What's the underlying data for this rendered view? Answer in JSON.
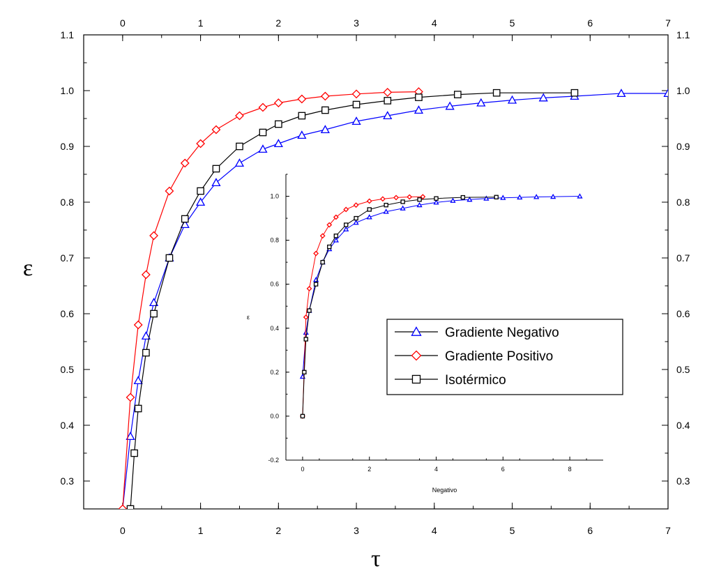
{
  "chart_data": [
    {
      "type": "scatter",
      "xlabel": "τ",
      "ylabel": "ε",
      "xlim": [
        -0.5,
        7
      ],
      "ylim": [
        0.25,
        1.1
      ],
      "x_ticks": [
        0,
        1,
        2,
        3,
        4,
        5,
        6,
        7
      ],
      "y_ticks": [
        0.3,
        0.4,
        0.5,
        0.6,
        0.7,
        0.8,
        0.9,
        1.0,
        1.1
      ],
      "x_tick_labels": [
        "0",
        "1",
        "2",
        "3",
        "4",
        "5",
        "6",
        "7"
      ],
      "y_tick_labels": [
        "0.3",
        "0.4",
        "0.5",
        "0.6",
        "0.7",
        "0.8",
        "0.9",
        "1.0",
        "1.1"
      ],
      "mirror_axes": "top-right",
      "legend_position": "inside-inset",
      "series": [
        {
          "name": "Gradiente Negativo",
          "color": "#0000ff",
          "marker": "triangle-icon",
          "x": [
            0.0,
            0.1,
            0.2,
            0.3,
            0.4,
            0.6,
            0.8,
            1.0,
            1.2,
            1.5,
            1.8,
            2.0,
            2.3,
            2.6,
            3.0,
            3.4,
            3.8,
            4.2,
            4.6,
            5.0,
            5.4,
            5.8,
            6.4,
            7.0
          ],
          "y": [
            0.25,
            0.38,
            0.48,
            0.56,
            0.62,
            0.7,
            0.76,
            0.8,
            0.835,
            0.87,
            0.895,
            0.905,
            0.92,
            0.93,
            0.945,
            0.955,
            0.965,
            0.972,
            0.978,
            0.983,
            0.987,
            0.99,
            0.995,
            0.995
          ]
        },
        {
          "name": "Gradiente Positivo",
          "color": "#ff0000",
          "marker": "diamond-icon",
          "x": [
            0.0,
            0.1,
            0.2,
            0.3,
            0.4,
            0.6,
            0.8,
            1.0,
            1.2,
            1.5,
            1.8,
            2.0,
            2.3,
            2.6,
            3.0,
            3.4,
            3.8
          ],
          "y": [
            0.25,
            0.45,
            0.58,
            0.67,
            0.74,
            0.82,
            0.87,
            0.905,
            0.93,
            0.955,
            0.97,
            0.978,
            0.985,
            0.99,
            0.994,
            0.997,
            0.998
          ]
        },
        {
          "name": "Isotérmico",
          "color": "#000000",
          "marker": "square-icon",
          "x": [
            0.1,
            0.15,
            0.2,
            0.3,
            0.4,
            0.6,
            0.8,
            1.0,
            1.2,
            1.5,
            1.8,
            2.0,
            2.3,
            2.6,
            3.0,
            3.4,
            3.8,
            4.3,
            4.8,
            5.8
          ],
          "y": [
            0.25,
            0.35,
            0.43,
            0.53,
            0.6,
            0.7,
            0.77,
            0.82,
            0.86,
            0.9,
            0.925,
            0.94,
            0.955,
            0.965,
            0.975,
            0.982,
            0.988,
            0.993,
            0.996,
            0.996
          ]
        }
      ]
    },
    {
      "type": "scatter",
      "xlabel": "Negativo",
      "ylabel": "ε",
      "xlim": [
        -0.5,
        9
      ],
      "ylim": [
        -0.2,
        1.1
      ],
      "x_ticks": [
        0,
        2,
        4,
        6,
        8
      ],
      "y_ticks": [
        -0.2,
        0.0,
        0.2,
        0.4,
        0.6,
        0.8,
        1.0
      ],
      "x_tick_labels": [
        "0",
        "2",
        "4",
        "6",
        "8"
      ],
      "y_tick_labels": [
        "-0.2",
        "0.0",
        "0.2",
        "0.4",
        "0.6",
        "0.8",
        "1.0"
      ],
      "series": [
        {
          "name": "Gradiente Negativo",
          "color": "#0000ff",
          "marker": "triangle-icon",
          "x": [
            0.0,
            0.1,
            0.2,
            0.4,
            0.6,
            0.8,
            1.0,
            1.3,
            1.6,
            2.0,
            2.5,
            3.0,
            3.5,
            4.0,
            4.5,
            5.0,
            5.5,
            6.0,
            6.5,
            7.0,
            7.5,
            8.3
          ],
          "y": [
            0.18,
            0.38,
            0.48,
            0.62,
            0.7,
            0.76,
            0.8,
            0.85,
            0.88,
            0.905,
            0.93,
            0.945,
            0.96,
            0.972,
            0.98,
            0.985,
            0.99,
            0.993,
            0.995,
            0.997,
            0.998,
            1.0
          ]
        },
        {
          "name": "Gradiente Positivo",
          "color": "#ff0000",
          "marker": "diamond-icon",
          "x": [
            0.0,
            0.1,
            0.2,
            0.4,
            0.6,
            0.8,
            1.0,
            1.3,
            1.6,
            2.0,
            2.4,
            2.8,
            3.2,
            3.6
          ],
          "y": [
            0.0,
            0.45,
            0.58,
            0.74,
            0.82,
            0.87,
            0.905,
            0.94,
            0.96,
            0.978,
            0.988,
            0.994,
            0.997,
            0.998
          ]
        },
        {
          "name": "Isotérmico",
          "color": "#000000",
          "marker": "square-icon",
          "x": [
            0.0,
            0.05,
            0.1,
            0.2,
            0.4,
            0.6,
            0.8,
            1.0,
            1.3,
            1.6,
            2.0,
            2.5,
            3.0,
            3.5,
            4.0,
            4.8,
            5.8
          ],
          "y": [
            0.0,
            0.2,
            0.35,
            0.48,
            0.6,
            0.7,
            0.77,
            0.82,
            0.87,
            0.9,
            0.94,
            0.96,
            0.975,
            0.985,
            0.99,
            0.995,
            0.996
          ]
        }
      ]
    }
  ]
}
